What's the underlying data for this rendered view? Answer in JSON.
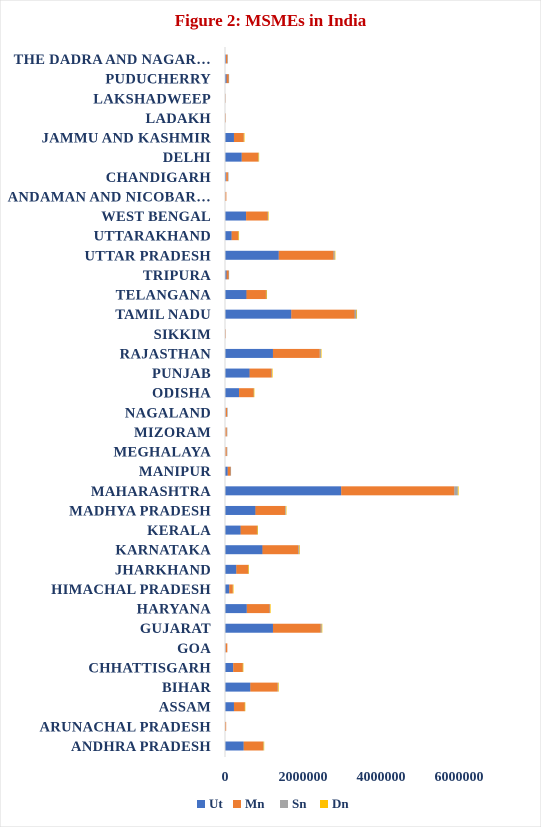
{
  "chart_data": {
    "type": "bar",
    "orientation": "horizontal",
    "stacked": true,
    "title": "Figure 2: MSMEs in India",
    "categories": [
      "ANDHRA PRADESH",
      "ARUNACHAL PRADESH",
      "ASSAM",
      "BIHAR",
      "CHHATTISGARH",
      "GOA",
      "GUJARAT",
      "HARYANA",
      "HIMACHAL PRADESH",
      "JHARKHAND",
      "KARNATAKA",
      "KERALA",
      "MADHYA PRADESH",
      "MAHARASHTRA",
      "MANIPUR",
      "MEGHALAYA",
      "MIZORAM",
      "NAGALAND",
      "ODISHA",
      "PUNJAB",
      "RAJASTHAN",
      "SIKKIM",
      "TAMIL NADU",
      "TELANGANA",
      "TRIPURA",
      "UTTAR PRADESH",
      "UTTARAKHAND",
      "WEST BENGAL",
      "ANDAMAN AND NICOBAR…",
      "CHANDIGARH",
      "DELHI",
      "JAMMU AND KASHMIR",
      "LADAKH",
      "LAKSHADWEEP",
      "PUDUCHERRY",
      "THE DADRA AND NAGAR…"
    ],
    "series": [
      {
        "name": "Ut",
        "color": "#4472c4",
        "values": [
          480000,
          10000,
          230000,
          650000,
          210000,
          20000,
          1230000,
          560000,
          110000,
          290000,
          960000,
          400000,
          780000,
          2980000,
          70000,
          15000,
          15000,
          20000,
          360000,
          630000,
          1230000,
          5000,
          1700000,
          550000,
          40000,
          1380000,
          170000,
          540000,
          15000,
          30000,
          430000,
          230000,
          5000,
          2000,
          40000,
          25000
        ]
      },
      {
        "name": "Mn",
        "color": "#ed7d31",
        "values": [
          500000,
          20000,
          270000,
          700000,
          240000,
          40000,
          1220000,
          580000,
          90000,
          300000,
          920000,
          420000,
          760000,
          2900000,
          70000,
          30000,
          30000,
          35000,
          370000,
          560000,
          1200000,
          10000,
          1620000,
          500000,
          50000,
          1400000,
          170000,
          550000,
          20000,
          45000,
          420000,
          250000,
          10000,
          3000,
          50000,
          35000
        ]
      },
      {
        "name": "Sn",
        "color": "#a5a5a5",
        "values": [
          10000,
          0,
          5000,
          15000,
          5000,
          0,
          30000,
          15000,
          3000,
          7000,
          25000,
          10000,
          20000,
          90000,
          1000,
          1000,
          1000,
          1000,
          8000,
          15000,
          30000,
          0,
          50000,
          12000,
          1000,
          35000,
          5000,
          15000,
          0,
          1000,
          10000,
          5000,
          0,
          0,
          1000,
          1000
        ]
      },
      {
        "name": "Dn",
        "color": "#ffc000",
        "values": [
          3000,
          0,
          1000,
          3000,
          1000,
          0,
          8000,
          4000,
          1000,
          2000,
          6000,
          3000,
          5000,
          20000,
          0,
          0,
          0,
          0,
          2000,
          4000,
          8000,
          0,
          12000,
          3000,
          0,
          9000,
          1000,
          4000,
          0,
          0,
          3000,
          1000,
          0,
          0,
          0,
          0
        ]
      }
    ],
    "xlim": [
      0,
      6000000
    ],
    "xticks": [
      "0",
      "2000000",
      "4000000",
      "6000000"
    ],
    "xtick_values": [
      0,
      2000000,
      4000000,
      6000000
    ],
    "grid": false,
    "legend_position": "bottom"
  }
}
